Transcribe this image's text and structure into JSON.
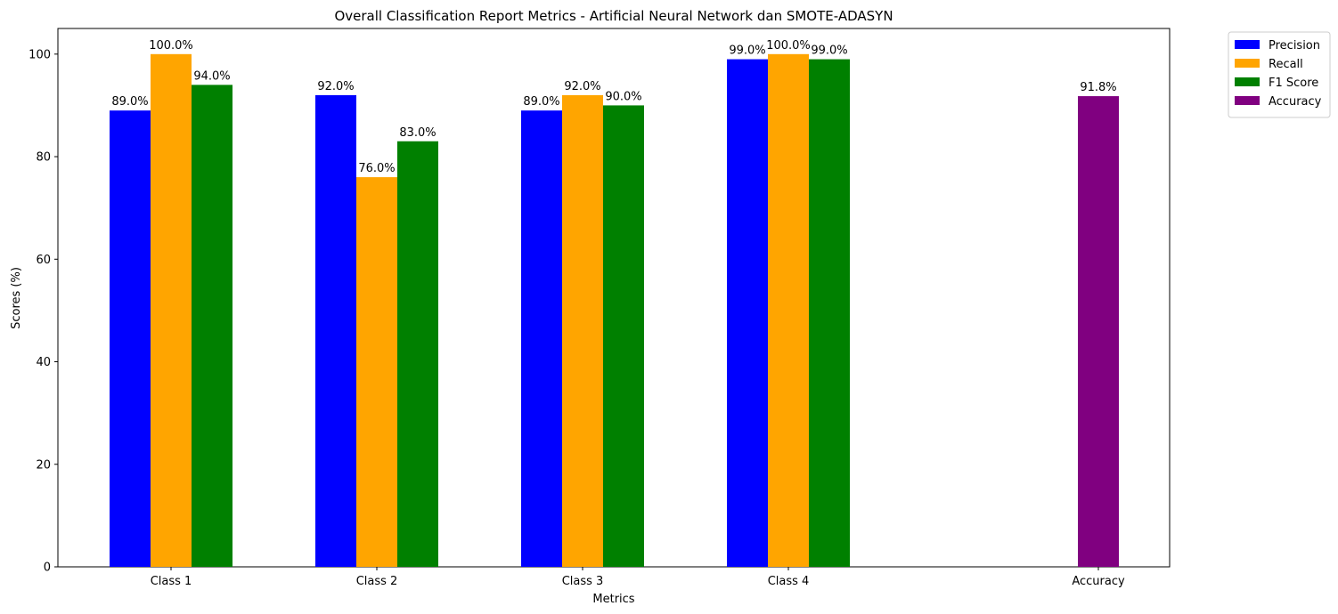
{
  "chart_data": {
    "type": "bar",
    "title": "Overall Classification Report Metrics - Artificial Neural Network dan SMOTE-ADASYN",
    "xlabel": "Metrics",
    "ylabel": "Scores (%)",
    "ylim": [
      0,
      105
    ],
    "yticks": [
      0,
      20,
      40,
      60,
      80,
      100
    ],
    "categories": [
      "Class 1",
      "Class 2",
      "Class 3",
      "Class 4",
      "Accuracy"
    ],
    "series": [
      {
        "name": "Precision",
        "color": "#0000ff",
        "values": [
          89.0,
          92.0,
          89.0,
          99.0,
          null
        ],
        "labels": [
          "89.0%",
          "92.0%",
          "89.0%",
          "99.0%",
          null
        ]
      },
      {
        "name": "Recall",
        "color": "#ffa500",
        "values": [
          100.0,
          76.0,
          92.0,
          100.0,
          null
        ],
        "labels": [
          "100.0%",
          "76.0%",
          "92.0%",
          "100.0%",
          null
        ]
      },
      {
        "name": "F1 Score",
        "color": "#008000",
        "values": [
          94.0,
          83.0,
          90.0,
          99.0,
          null
        ],
        "labels": [
          "94.0%",
          "83.0%",
          "90.0%",
          "99.0%",
          null
        ]
      },
      {
        "name": "Accuracy",
        "color": "#800080",
        "values": [
          null,
          null,
          null,
          null,
          91.8
        ],
        "labels": [
          null,
          null,
          null,
          null,
          "91.8%"
        ]
      }
    ],
    "grid": false,
    "legend_position": "outside-top-right"
  }
}
